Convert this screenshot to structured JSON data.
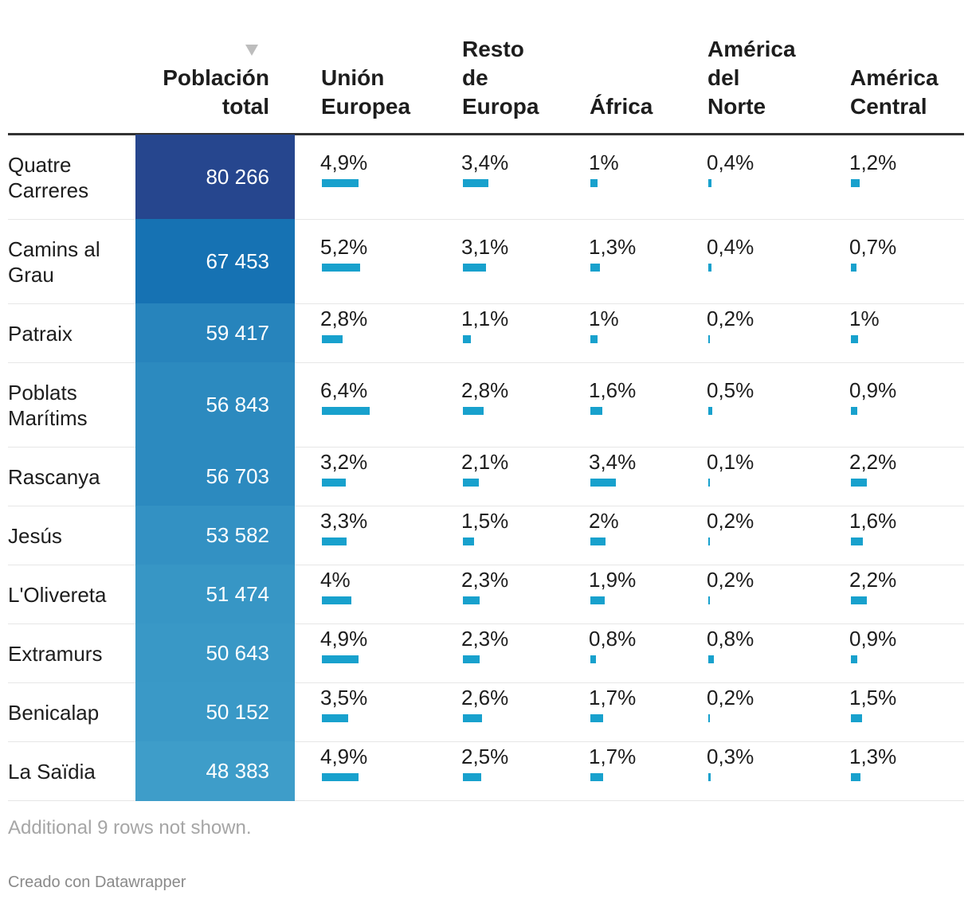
{
  "chart_data": {
    "type": "table",
    "columns": [
      {
        "key": "name",
        "label": ""
      },
      {
        "key": "total",
        "label": "Población\ntotal"
      },
      {
        "key": "ue",
        "label": "Unión\nEuropea"
      },
      {
        "key": "re",
        "label": "Resto\nde\nEuropa"
      },
      {
        "key": "af",
        "label": "África"
      },
      {
        "key": "an",
        "label": "América\ndel\nNorte"
      },
      {
        "key": "ac",
        "label": "América\nCentral"
      }
    ],
    "sort_indicator": "descending",
    "bar_color": "#18a1cd",
    "rows": [
      {
        "name": "Quatre\nCarreres",
        "total": "80 266",
        "total_value": 80266,
        "ue": "4,9%",
        "ue_value": 4.9,
        "re": "3,4%",
        "re_value": 3.4,
        "af": "1%",
        "af_value": 1.0,
        "an": "0,4%",
        "an_value": 0.4,
        "ac": "1,2%",
        "ac_value": 1.2
      },
      {
        "name": "Camins al\nGrau",
        "total": "67 453",
        "total_value": 67453,
        "ue": "5,2%",
        "ue_value": 5.2,
        "re": "3,1%",
        "re_value": 3.1,
        "af": "1,3%",
        "af_value": 1.3,
        "an": "0,4%",
        "an_value": 0.4,
        "ac": "0,7%",
        "ac_value": 0.7
      },
      {
        "name": "Patraix",
        "total": "59 417",
        "total_value": 59417,
        "ue": "2,8%",
        "ue_value": 2.8,
        "re": "1,1%",
        "re_value": 1.1,
        "af": "1%",
        "af_value": 1.0,
        "an": "0,2%",
        "an_value": 0.2,
        "ac": "1%",
        "ac_value": 1.0
      },
      {
        "name": "Poblats\nMarítims",
        "total": "56 843",
        "total_value": 56843,
        "ue": "6,4%",
        "ue_value": 6.4,
        "re": "2,8%",
        "re_value": 2.8,
        "af": "1,6%",
        "af_value": 1.6,
        "an": "0,5%",
        "an_value": 0.5,
        "ac": "0,9%",
        "ac_value": 0.9
      },
      {
        "name": "Rascanya",
        "total": "56 703",
        "total_value": 56703,
        "ue": "3,2%",
        "ue_value": 3.2,
        "re": "2,1%",
        "re_value": 2.1,
        "af": "3,4%",
        "af_value": 3.4,
        "an": "0,1%",
        "an_value": 0.1,
        "ac": "2,2%",
        "ac_value": 2.2
      },
      {
        "name": "Jesús",
        "total": "53 582",
        "total_value": 53582,
        "ue": "3,3%",
        "ue_value": 3.3,
        "re": "1,5%",
        "re_value": 1.5,
        "af": "2%",
        "af_value": 2.0,
        "an": "0,2%",
        "an_value": 0.2,
        "ac": "1,6%",
        "ac_value": 1.6
      },
      {
        "name": "L'Olivereta",
        "total": "51 474",
        "total_value": 51474,
        "ue": "4%",
        "ue_value": 4.0,
        "re": "2,3%",
        "re_value": 2.3,
        "af": "1,9%",
        "af_value": 1.9,
        "an": "0,2%",
        "an_value": 0.2,
        "ac": "2,2%",
        "ac_value": 2.2
      },
      {
        "name": "Extramurs",
        "total": "50 643",
        "total_value": 50643,
        "ue": "4,9%",
        "ue_value": 4.9,
        "re": "2,3%",
        "re_value": 2.3,
        "af": "0,8%",
        "af_value": 0.8,
        "an": "0,8%",
        "an_value": 0.8,
        "ac": "0,9%",
        "ac_value": 0.9
      },
      {
        "name": "Benicalap",
        "total": "50 152",
        "total_value": 50152,
        "ue": "3,5%",
        "ue_value": 3.5,
        "re": "2,6%",
        "re_value": 2.6,
        "af": "1,7%",
        "af_value": 1.7,
        "an": "0,2%",
        "an_value": 0.2,
        "ac": "1,5%",
        "ac_value": 1.5
      },
      {
        "name": "La Saïdia",
        "total": "48 383",
        "total_value": 48383,
        "ue": "4,9%",
        "ue_value": 4.9,
        "re": "2,5%",
        "re_value": 2.5,
        "af": "1,7%",
        "af_value": 1.7,
        "an": "0,3%",
        "an_value": 0.3,
        "ac": "1,3%",
        "ac_value": 1.3
      }
    ],
    "note": "Additional 9 rows not shown.",
    "credit": "Creado con Datawrapper"
  }
}
